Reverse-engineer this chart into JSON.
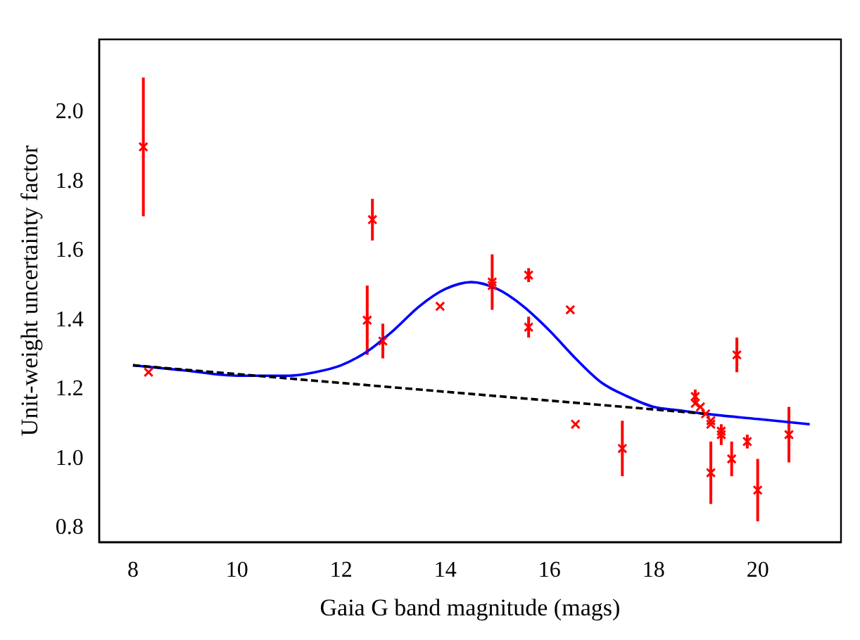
{
  "chart_data": {
    "type": "scatter",
    "xlabel": "Gaia G band magnitude (mags)",
    "ylabel": "Unit-weight uncertainty factor",
    "xlim": [
      7.35,
      21.6
    ],
    "ylim": [
      0.76,
      2.21
    ],
    "xticks": [
      8,
      10,
      12,
      14,
      16,
      18,
      20
    ],
    "yticks": [
      {
        "value": 0.8,
        "label": "0.8"
      },
      {
        "value": 1.0,
        "label": "1.0"
      },
      {
        "value": 1.2,
        "label": "1.2"
      },
      {
        "value": 1.4,
        "label": "1.4"
      },
      {
        "value": 1.6,
        "label": "1.6"
      },
      {
        "value": 1.8,
        "label": "1.8"
      },
      {
        "value": 2.0,
        "label": "2.0"
      }
    ],
    "grid": false,
    "legend": false,
    "series": [
      {
        "type": "line",
        "color": "#0000ff",
        "line_style": "solid",
        "marker": "none",
        "x": [
          8,
          9,
          10,
          11,
          11.5,
          12,
          12.5,
          13,
          13.5,
          14,
          14.5,
          15,
          15.5,
          16,
          16.5,
          17,
          17.5,
          18,
          18.5,
          19,
          20,
          21
        ],
        "values": [
          1.27,
          1.255,
          1.24,
          1.24,
          1.25,
          1.27,
          1.31,
          1.37,
          1.44,
          1.49,
          1.51,
          1.49,
          1.44,
          1.37,
          1.29,
          1.22,
          1.18,
          1.15,
          1.14,
          1.13,
          1.115,
          1.1
        ]
      },
      {
        "type": "line",
        "color": "#000000",
        "line_style": "dashed",
        "marker": "none",
        "x": [
          8,
          19
        ],
        "values": [
          1.27,
          1.13
        ]
      },
      {
        "color": "#ff0000",
        "marker": "cross",
        "x": [
          8.2,
          8.3,
          12.5,
          12.6,
          12.8,
          13.9,
          14.9,
          14.9,
          15.6,
          15.6,
          16.4,
          16.5,
          17.4,
          18.8,
          18.8,
          18.9,
          19.0,
          19.1,
          19.1,
          19.1,
          19.3,
          19.3,
          19.5,
          19.6,
          19.8,
          20.0,
          20.6
        ],
        "values": [
          1.9,
          1.25,
          1.4,
          1.69,
          1.34,
          1.44,
          1.51,
          1.5,
          1.53,
          1.38,
          1.43,
          1.1,
          1.03,
          1.18,
          1.16,
          1.15,
          1.13,
          1.1,
          1.11,
          0.96,
          1.08,
          1.07,
          1.0,
          1.3,
          1.05,
          0.91,
          1.07
        ],
        "errors": [
          0.2,
          null,
          0.1,
          0.06,
          0.05,
          null,
          0.08,
          null,
          0.02,
          0.03,
          null,
          null,
          0.08,
          0.02,
          null,
          null,
          null,
          null,
          null,
          0.09,
          null,
          0.03,
          0.05,
          0.05,
          0.02,
          0.09,
          0.08
        ]
      }
    ]
  }
}
